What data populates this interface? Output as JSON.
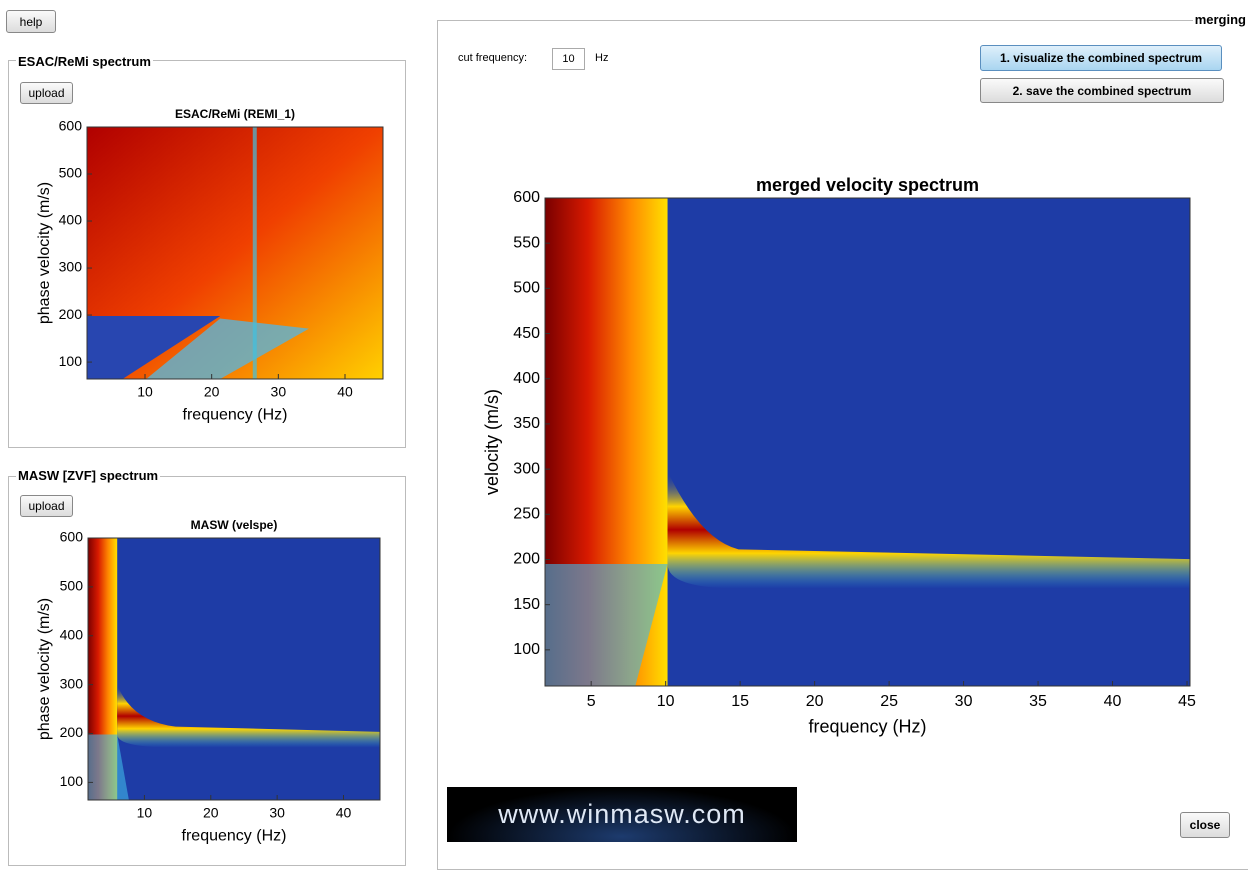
{
  "help_button": "help",
  "panels": [
    {
      "title": "ESAC/ReMi spectrum",
      "upload": "upload",
      "plot": {
        "title": "ESAC/ReMi (REMI_1)",
        "xlabel": "frequency (Hz)",
        "ylabel": "phase velocity (m/s)",
        "xlim": [
          1.3,
          45.7
        ],
        "ylim": [
          64,
          600
        ],
        "xticks": [
          10,
          20,
          30,
          40
        ],
        "yticks": [
          100,
          200,
          300,
          400,
          500,
          600
        ]
      }
    },
    {
      "title": "MASW [ZVF] spectrum",
      "upload": "upload",
      "plot": {
        "title": "MASW (velspe)",
        "xlabel": "frequency (Hz)",
        "ylabel": "phase velocity (m/s)",
        "xlim": [
          1.5,
          45.5
        ],
        "ylim": [
          64,
          600
        ],
        "xticks": [
          10,
          20,
          30,
          40
        ],
        "yticks": [
          100,
          200,
          300,
          400,
          500,
          600
        ]
      }
    }
  ],
  "merging": {
    "title": "merging",
    "cut_label": "cut frequency:",
    "cut_value": 10,
    "cut_unit": "Hz",
    "buttons": [
      "1. visualize the combined spectrum",
      "2. save the combined spectrum"
    ],
    "plot": {
      "title": "merged velocity spectrum",
      "xlabel": "frequency (Hz)",
      "ylabel": "velocity (m/s)",
      "xlim": [
        1.9,
        45.2
      ],
      "ylim": [
        60,
        600
      ],
      "xticks": [
        5,
        10,
        15,
        20,
        25,
        30,
        35,
        40,
        45
      ],
      "yticks": [
        100,
        150,
        200,
        250,
        300,
        350,
        400,
        450,
        500,
        550,
        600
      ]
    },
    "banner": "www.winmasw.com",
    "close": "close"
  }
}
